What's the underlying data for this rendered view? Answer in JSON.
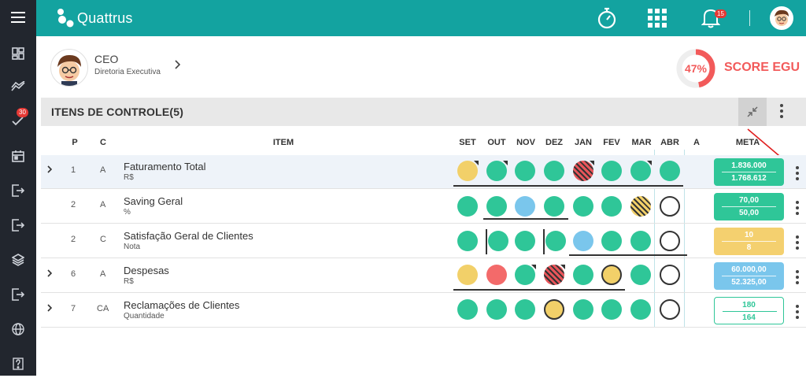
{
  "app": {
    "name": "Quattrus",
    "notifications": "15"
  },
  "sidebar": {
    "badge_count": "30",
    "items": [
      {
        "icon": "menu-icon"
      },
      {
        "icon": "dashboard-icon"
      },
      {
        "icon": "chart-trend-icon"
      },
      {
        "icon": "check-list-icon"
      },
      {
        "icon": "calendar-icon"
      },
      {
        "icon": "exit-icon"
      },
      {
        "icon": "exit-icon"
      },
      {
        "icon": "layers-icon"
      },
      {
        "icon": "exit-icon"
      },
      {
        "icon": "globe-icon"
      },
      {
        "icon": "help-icon"
      }
    ]
  },
  "profile": {
    "title": "CEO",
    "subtitle": "Diretoria Executiva"
  },
  "score": {
    "percent": "47%",
    "label": "SCORE EGU",
    "value": 0.47
  },
  "section": {
    "title": "ITENS DE CONTROLE(5)"
  },
  "columns": {
    "p": "P",
    "c": "C",
    "item": "ITEM",
    "months": [
      "SET",
      "OUT",
      "NOV",
      "DEZ",
      "JAN",
      "FEV",
      "MAR",
      "ABR"
    ],
    "a": "A",
    "meta": "META"
  },
  "rows": [
    {
      "p": "1",
      "c": "A",
      "name": "Faturamento Total",
      "unit": "R$",
      "meta1": "1.836.000",
      "meta2": "1.768.612",
      "meta_color": "green"
    },
    {
      "p": "2",
      "c": "A",
      "name": "Saving Geral",
      "unit": "%",
      "meta1": "70,00",
      "meta2": "50,00",
      "meta_color": "green"
    },
    {
      "p": "2",
      "c": "C",
      "name": "Satisfação Geral de Clientes",
      "unit": "Nota",
      "meta1": "10",
      "meta2": "8",
      "meta_color": "yellow"
    },
    {
      "p": "6",
      "c": "A",
      "name": "Despesas",
      "unit": "R$",
      "meta1": "60.000,00",
      "meta2": "52.325,00",
      "meta_color": "blue"
    },
    {
      "p": "7",
      "c": "CA",
      "name": "Reclamações de Clientes",
      "unit": "Quantidade",
      "meta1": "180",
      "meta2": "164",
      "meta_color": "white"
    }
  ],
  "colors": {
    "teal": "#13a3a0",
    "green": "#2fc698",
    "yellow": "#f2d069",
    "blue": "#7ac6ec",
    "red": "#f36a6a",
    "sidebar": "#22262e"
  }
}
